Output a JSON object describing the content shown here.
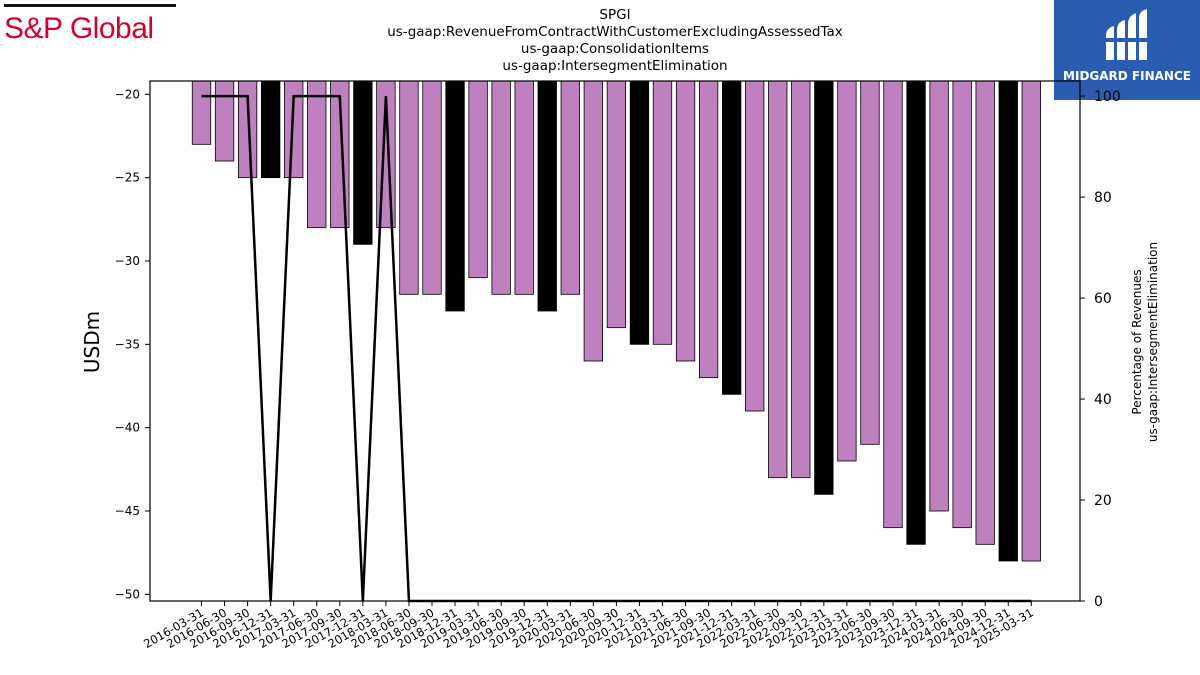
{
  "header": {
    "left_logo_text": "S&P Global",
    "right_logo_text": "MIDGARD FINANCE",
    "right_logo_icon": "midgard-logo-icon",
    "title_lines": [
      "SPGI",
      "us-gaap:RevenueFromContractWithCustomerExcludingAssessedTax",
      "us-gaap:ConsolidationItems",
      "us-gaap:IntersegmentElimination"
    ]
  },
  "colors": {
    "bar_regular": "#bf80bf",
    "bar_highlight": "#000000",
    "line": "#000000"
  },
  "chart_data": {
    "type": "bar",
    "ylabel": "USDm",
    "y2label_lines": [
      "Percentage of Revenues",
      "us-gaap:IntersegmentElimination"
    ],
    "ylim": [
      -50.4,
      -19.2
    ],
    "y2lim": [
      0,
      103
    ],
    "yticks": [
      -20,
      -25,
      -30,
      -35,
      -40,
      -45,
      -50
    ],
    "y2ticks": [
      0,
      20,
      40,
      60,
      80,
      100
    ],
    "categories": [
      "2016-03-31",
      "2016-06-30",
      "2016-09-30",
      "2016-12-31",
      "2017-03-31",
      "2017-06-30",
      "2017-09-30",
      "2017-12-31",
      "2018-03-31",
      "2018-06-30",
      "2018-09-30",
      "2018-12-31",
      "2019-03-31",
      "2019-06-30",
      "2019-09-30",
      "2019-12-31",
      "2020-03-31",
      "2020-06-30",
      "2020-09-30",
      "2020-12-31",
      "2021-03-31",
      "2021-06-30",
      "2021-09-30",
      "2021-12-31",
      "2022-03-31",
      "2022-06-30",
      "2022-09-30",
      "2022-12-31",
      "2023-03-31",
      "2023-06-30",
      "2023-09-30",
      "2023-12-31",
      "2024-03-31",
      "2024-06-30",
      "2024-09-30",
      "2024-12-31",
      "2025-03-31"
    ],
    "values": [
      -23,
      -24,
      -25,
      -25,
      -25,
      -28,
      -28,
      -29,
      -28,
      -32,
      -32,
      -33,
      -31,
      -32,
      -32,
      -33,
      -32,
      -36,
      -34,
      -35,
      -35,
      -36,
      -37,
      -38,
      -39,
      -43,
      -43,
      -44,
      -42,
      -41,
      -46,
      -47,
      -45,
      -46,
      -47,
      -48,
      -48
    ],
    "highlighted": [
      false,
      false,
      false,
      true,
      false,
      false,
      false,
      true,
      false,
      false,
      false,
      true,
      false,
      false,
      false,
      true,
      false,
      false,
      false,
      true,
      false,
      false,
      false,
      true,
      false,
      false,
      false,
      true,
      false,
      false,
      false,
      true,
      false,
      false,
      false,
      true,
      false
    ],
    "line_series": {
      "axis": "right",
      "values": [
        100,
        100,
        100,
        0,
        100,
        100,
        100,
        0,
        100,
        0,
        0,
        0,
        0,
        0,
        0,
        0,
        0,
        0,
        0,
        0,
        0,
        0,
        0,
        0,
        0,
        0,
        0,
        0,
        0,
        0,
        0,
        0,
        0,
        0,
        0,
        0,
        0
      ]
    },
    "grid": false
  }
}
